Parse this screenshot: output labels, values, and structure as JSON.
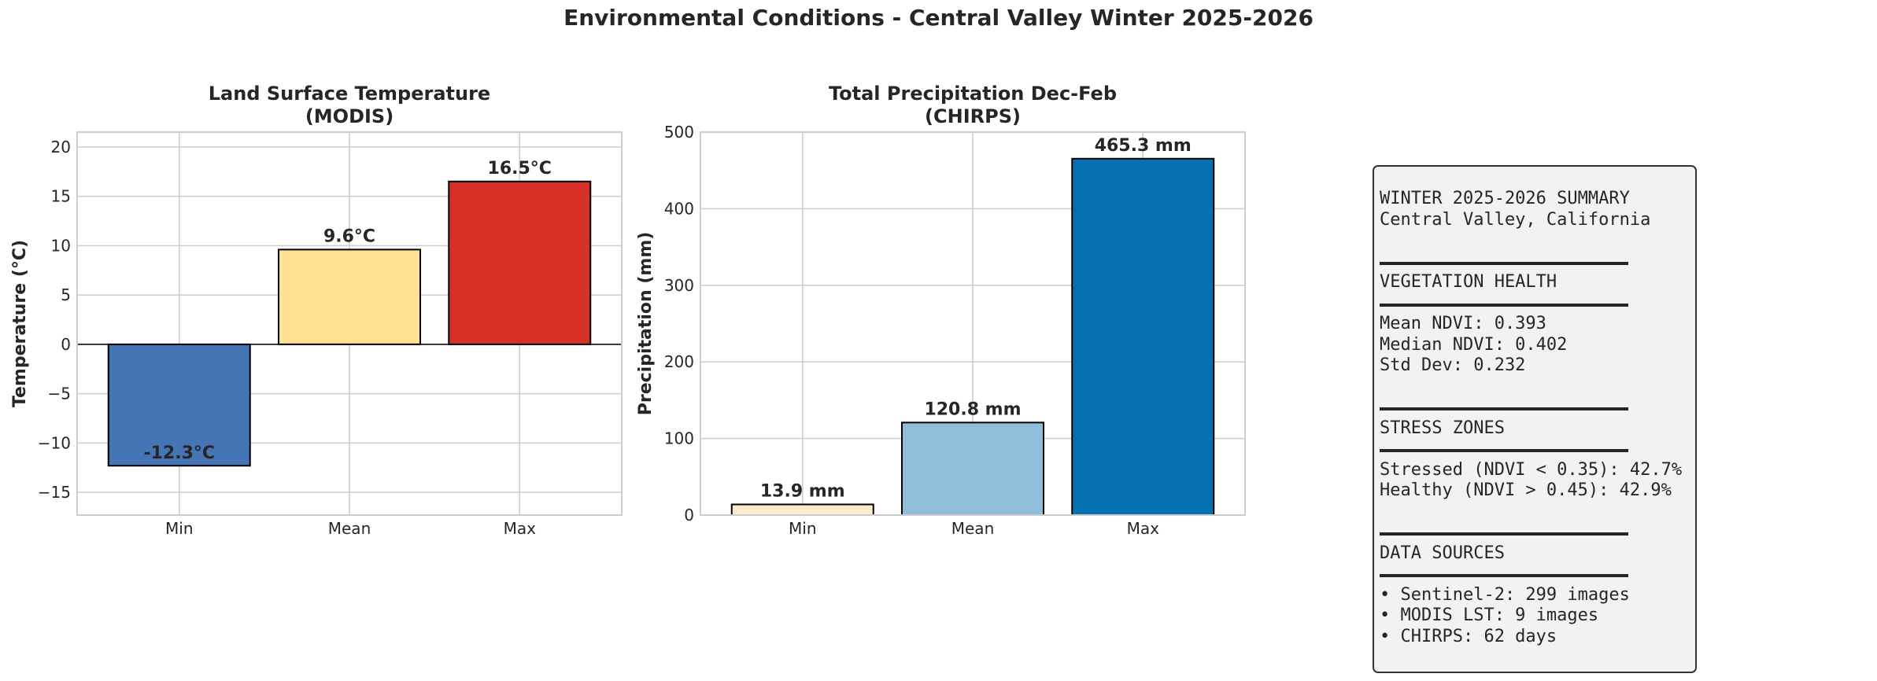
{
  "figure_title": "Environmental Conditions - Central Valley Winter 2025-2026",
  "chart_data": [
    {
      "type": "bar",
      "title_lines": [
        "Land Surface Temperature",
        "(MODIS)"
      ],
      "ylabel": "Temperature (°C)",
      "categories": [
        "Min",
        "Mean",
        "Max"
      ],
      "values": [
        -12.3,
        9.6,
        16.5
      ],
      "labels": [
        "-12.3°C",
        "9.6°C",
        "16.5°C"
      ],
      "colors": [
        "#4575b4",
        "#fee090",
        "#d73027"
      ],
      "ylim": [
        -17.3,
        21.5
      ],
      "yticks": [
        -15,
        -10,
        -5,
        0,
        5,
        10,
        15,
        20
      ],
      "ytick_labels": [
        "−15",
        "−10",
        "−5",
        "0",
        "5",
        "10",
        "15",
        "20"
      ],
      "grid": true,
      "zero_line": true
    },
    {
      "type": "bar",
      "title_lines": [
        "Total Precipitation Dec-Feb",
        "(CHIRPS)"
      ],
      "ylabel": "Precipitation (mm)",
      "categories": [
        "Min",
        "Mean",
        "Max"
      ],
      "values": [
        13.9,
        120.8,
        465.3
      ],
      "labels": [
        "13.9 mm",
        "120.8 mm",
        "465.3 mm"
      ],
      "colors": [
        "#fdebd0",
        "#91bfdb",
        "#0571b0"
      ],
      "ylim": [
        0,
        500
      ],
      "yticks": [
        0,
        100,
        200,
        300,
        400,
        500
      ],
      "ytick_labels": [
        "0",
        "100",
        "200",
        "300",
        "400",
        "500"
      ],
      "grid": true,
      "zero_line": false
    }
  ],
  "summary": {
    "lines": [
      {
        "kind": "text",
        "text": "WINTER 2025-2026 SUMMARY"
      },
      {
        "kind": "text",
        "text": "Central Valley, California"
      },
      {
        "kind": "blank"
      },
      {
        "kind": "sep"
      },
      {
        "kind": "text",
        "text": "VEGETATION HEALTH"
      },
      {
        "kind": "sep"
      },
      {
        "kind": "text",
        "text": "Mean NDVI: 0.393"
      },
      {
        "kind": "text",
        "text": "Median NDVI: 0.402"
      },
      {
        "kind": "text",
        "text": "Std Dev: 0.232"
      },
      {
        "kind": "blank"
      },
      {
        "kind": "sep"
      },
      {
        "kind": "text",
        "text": "STRESS ZONES"
      },
      {
        "kind": "sep"
      },
      {
        "kind": "text",
        "text": "Stressed (NDVI < 0.35): 42.7%"
      },
      {
        "kind": "text",
        "text": "Healthy (NDVI > 0.45): 42.9%"
      },
      {
        "kind": "blank"
      },
      {
        "kind": "sep"
      },
      {
        "kind": "text",
        "text": "DATA SOURCES"
      },
      {
        "kind": "sep"
      },
      {
        "kind": "text",
        "text": "• Sentinel-2: 299 images"
      },
      {
        "kind": "text",
        "text": "• MODIS LST: 9 images"
      },
      {
        "kind": "text",
        "text": "• CHIRPS: 62 days"
      }
    ]
  }
}
